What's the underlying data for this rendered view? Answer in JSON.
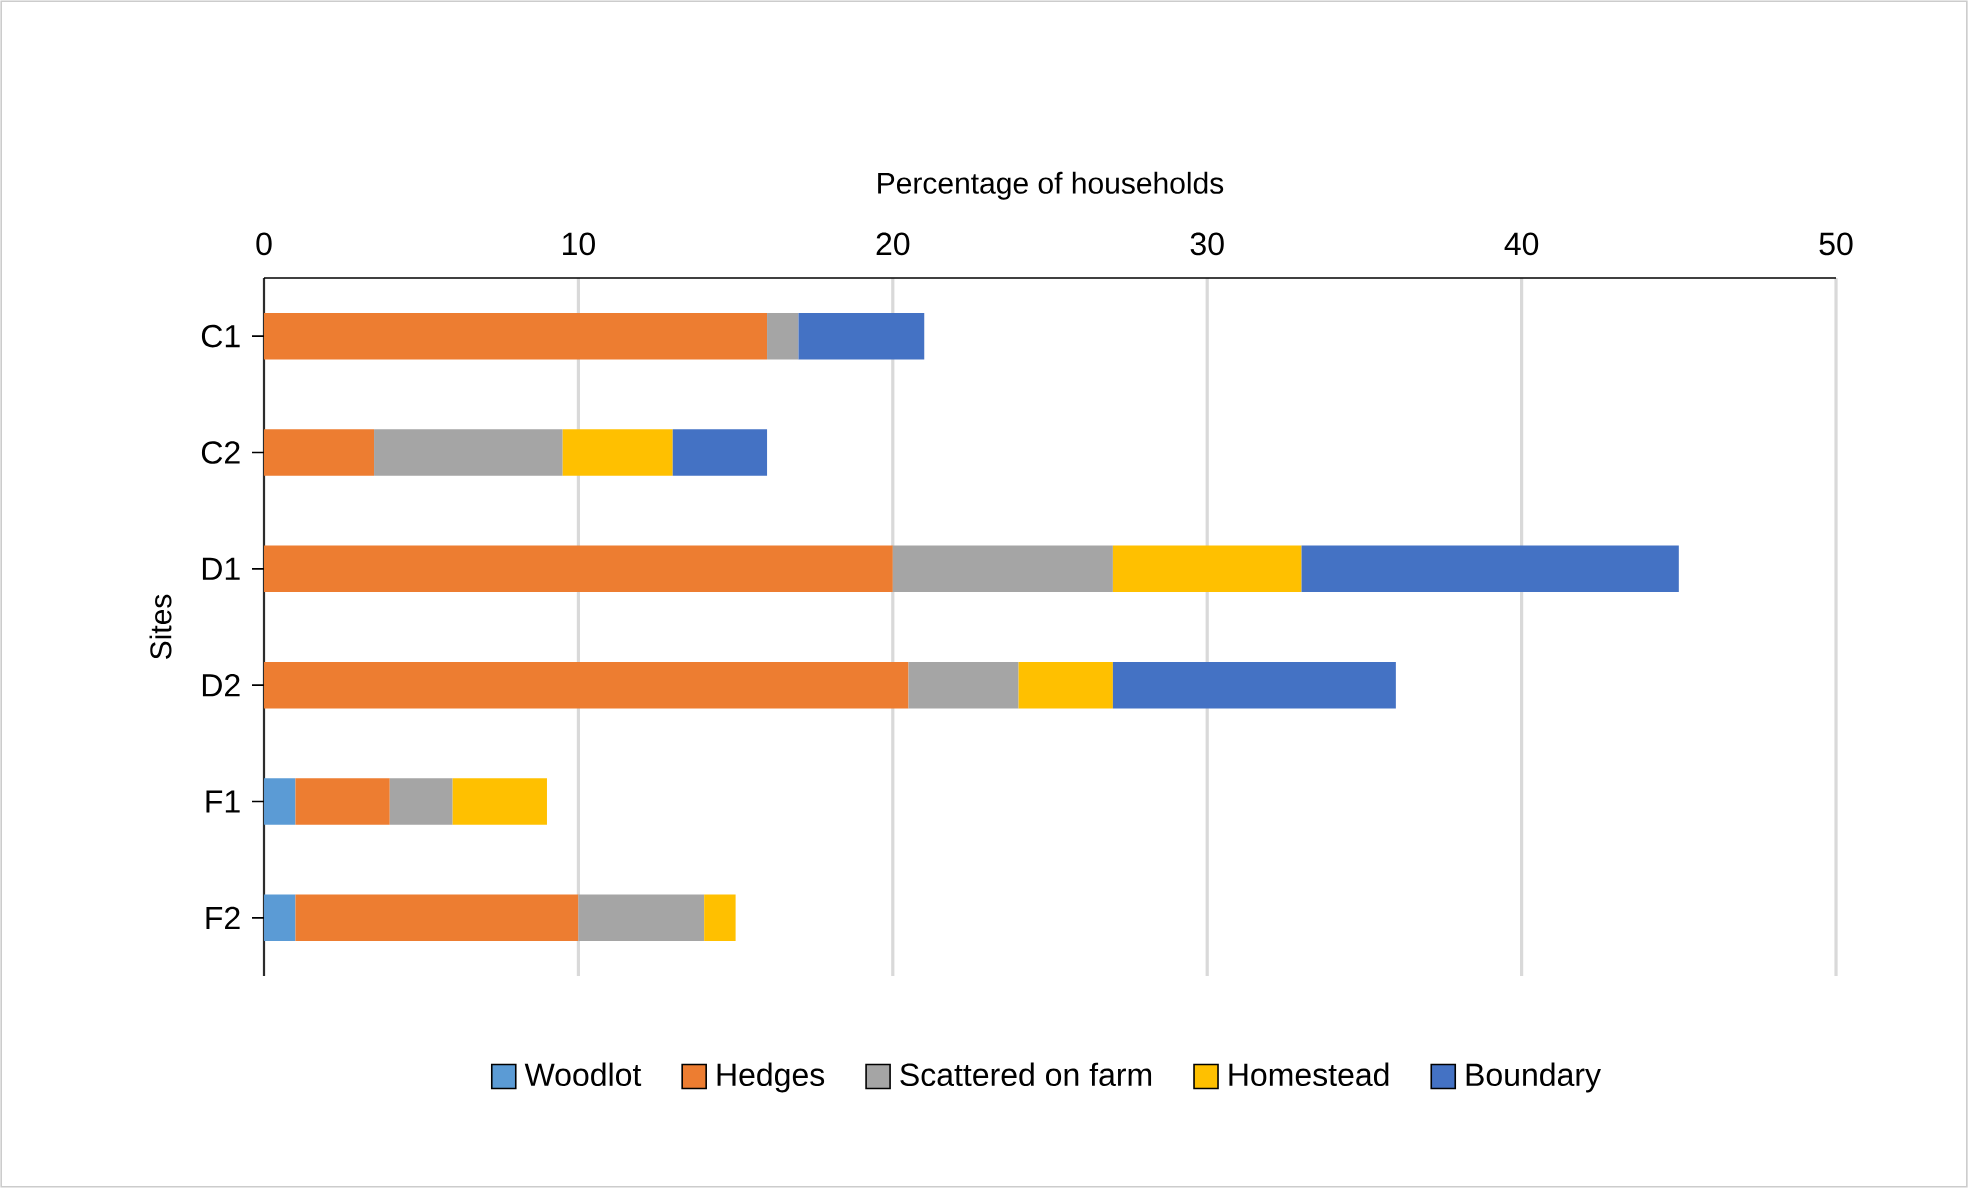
{
  "chart_data": {
    "type": "bar",
    "orientation": "horizontal",
    "stacked": true,
    "xlabel": "Percentage of households",
    "ylabel": "Sites",
    "categories": [
      "C1",
      "C2",
      "D1",
      "D2",
      "F1",
      "F2"
    ],
    "series": [
      {
        "name": "Woodlot",
        "color": "#5b9bd5",
        "values": [
          null,
          null,
          null,
          null,
          1,
          1
        ]
      },
      {
        "name": "Hedges",
        "color": "#ed7d31",
        "values": [
          16,
          3.5,
          20,
          20.5,
          3,
          9
        ]
      },
      {
        "name": "Scattered on farm",
        "color": "#a5a5a5",
        "values": [
          1,
          6,
          7,
          3.5,
          2,
          4
        ]
      },
      {
        "name": "Homestead",
        "color": "#ffc000",
        "values": [
          null,
          3.5,
          6,
          3,
          3,
          1
        ]
      },
      {
        "name": "Boundary",
        "color": "#4472c4",
        "values": [
          4,
          3,
          12,
          9,
          null,
          null
        ]
      }
    ],
    "xlim": [
      0,
      50
    ],
    "xticks": [
      0,
      10,
      20,
      30,
      40,
      50
    ],
    "grid": "x",
    "legend": "bottom"
  }
}
